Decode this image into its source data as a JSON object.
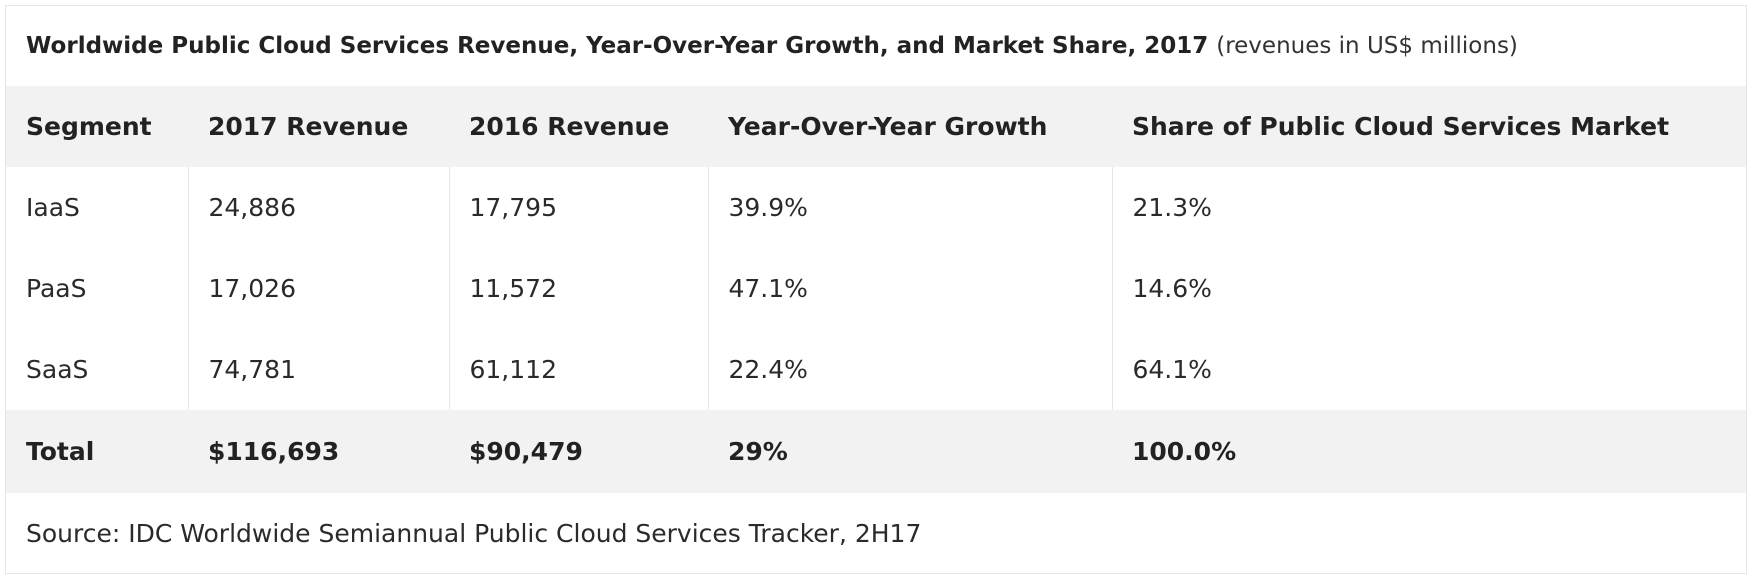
{
  "table": {
    "caption_title": "Worldwide Public Cloud Services Revenue, Year-Over-Year Growth, and Market Share, 2017",
    "caption_note": "(revenues in US$ millions)",
    "headers": [
      "Segment",
      "2017 Revenue",
      "2016 Revenue",
      "Year-Over-Year Growth",
      "Share of Public Cloud Services Market"
    ],
    "rows": [
      [
        "IaaS",
        "24,886",
        "17,795",
        "39.9%",
        "21.3%"
      ],
      [
        "PaaS",
        "17,026",
        "11,572",
        "47.1%",
        "14.6%"
      ],
      [
        "SaaS",
        "74,781",
        "61,112",
        "22.4%",
        "64.1%"
      ]
    ],
    "total": [
      "Total",
      "$116,693",
      "$90,479",
      "29%",
      "100.0%"
    ],
    "source": "Source: IDC Worldwide Semiannual Public Cloud Services Tracker, 2H17"
  },
  "colors": {
    "header_bg": "#f2f2f2",
    "total_bg": "#f2f2f2",
    "border": "#e6e6e6",
    "text": "#222222"
  }
}
